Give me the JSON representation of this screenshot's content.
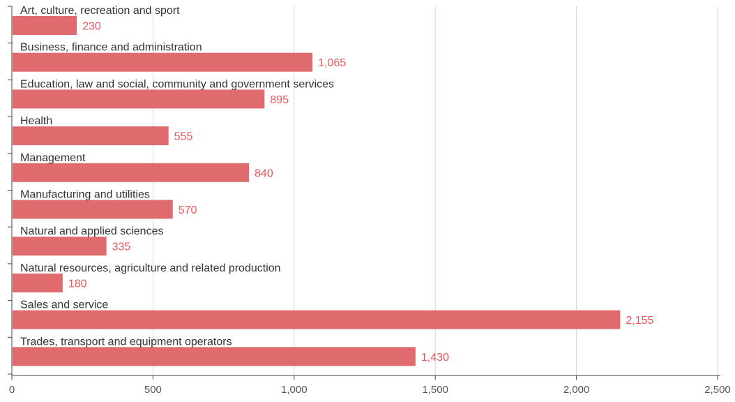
{
  "chart_data": {
    "type": "bar",
    "orientation": "horizontal",
    "categories": [
      "Art, culture, recreation and sport",
      "Business, finance and administration",
      "Education, law and social, community and government services",
      "Health",
      "Management",
      "Manufacturing and utilities",
      "Natural and applied sciences",
      "Natural resources, agriculture and related production",
      "Sales and service",
      "Trades, transport and equipment operators"
    ],
    "values": [
      230,
      1065,
      895,
      555,
      840,
      570,
      335,
      180,
      2155,
      1430
    ],
    "value_labels": [
      "230",
      "1,065",
      "895",
      "555",
      "840",
      "570",
      "335",
      "180",
      "2,155",
      "1,430"
    ],
    "xlim": [
      0,
      2500
    ],
    "x_ticks": [
      0,
      500,
      1000,
      1500,
      2000,
      2500
    ],
    "x_tick_labels": [
      "0",
      "500",
      "1,000",
      "1,500",
      "2,000",
      "2,500"
    ],
    "grid": "vertical",
    "legend": "none",
    "title": "",
    "xlabel": "",
    "ylabel": "",
    "colors": {
      "bar": "#e06b6e",
      "value_label": "#e8585c",
      "category_label": "#333333",
      "tick_label": "#555555",
      "gridline": "#d6d6d6",
      "axis": "#444444"
    }
  }
}
